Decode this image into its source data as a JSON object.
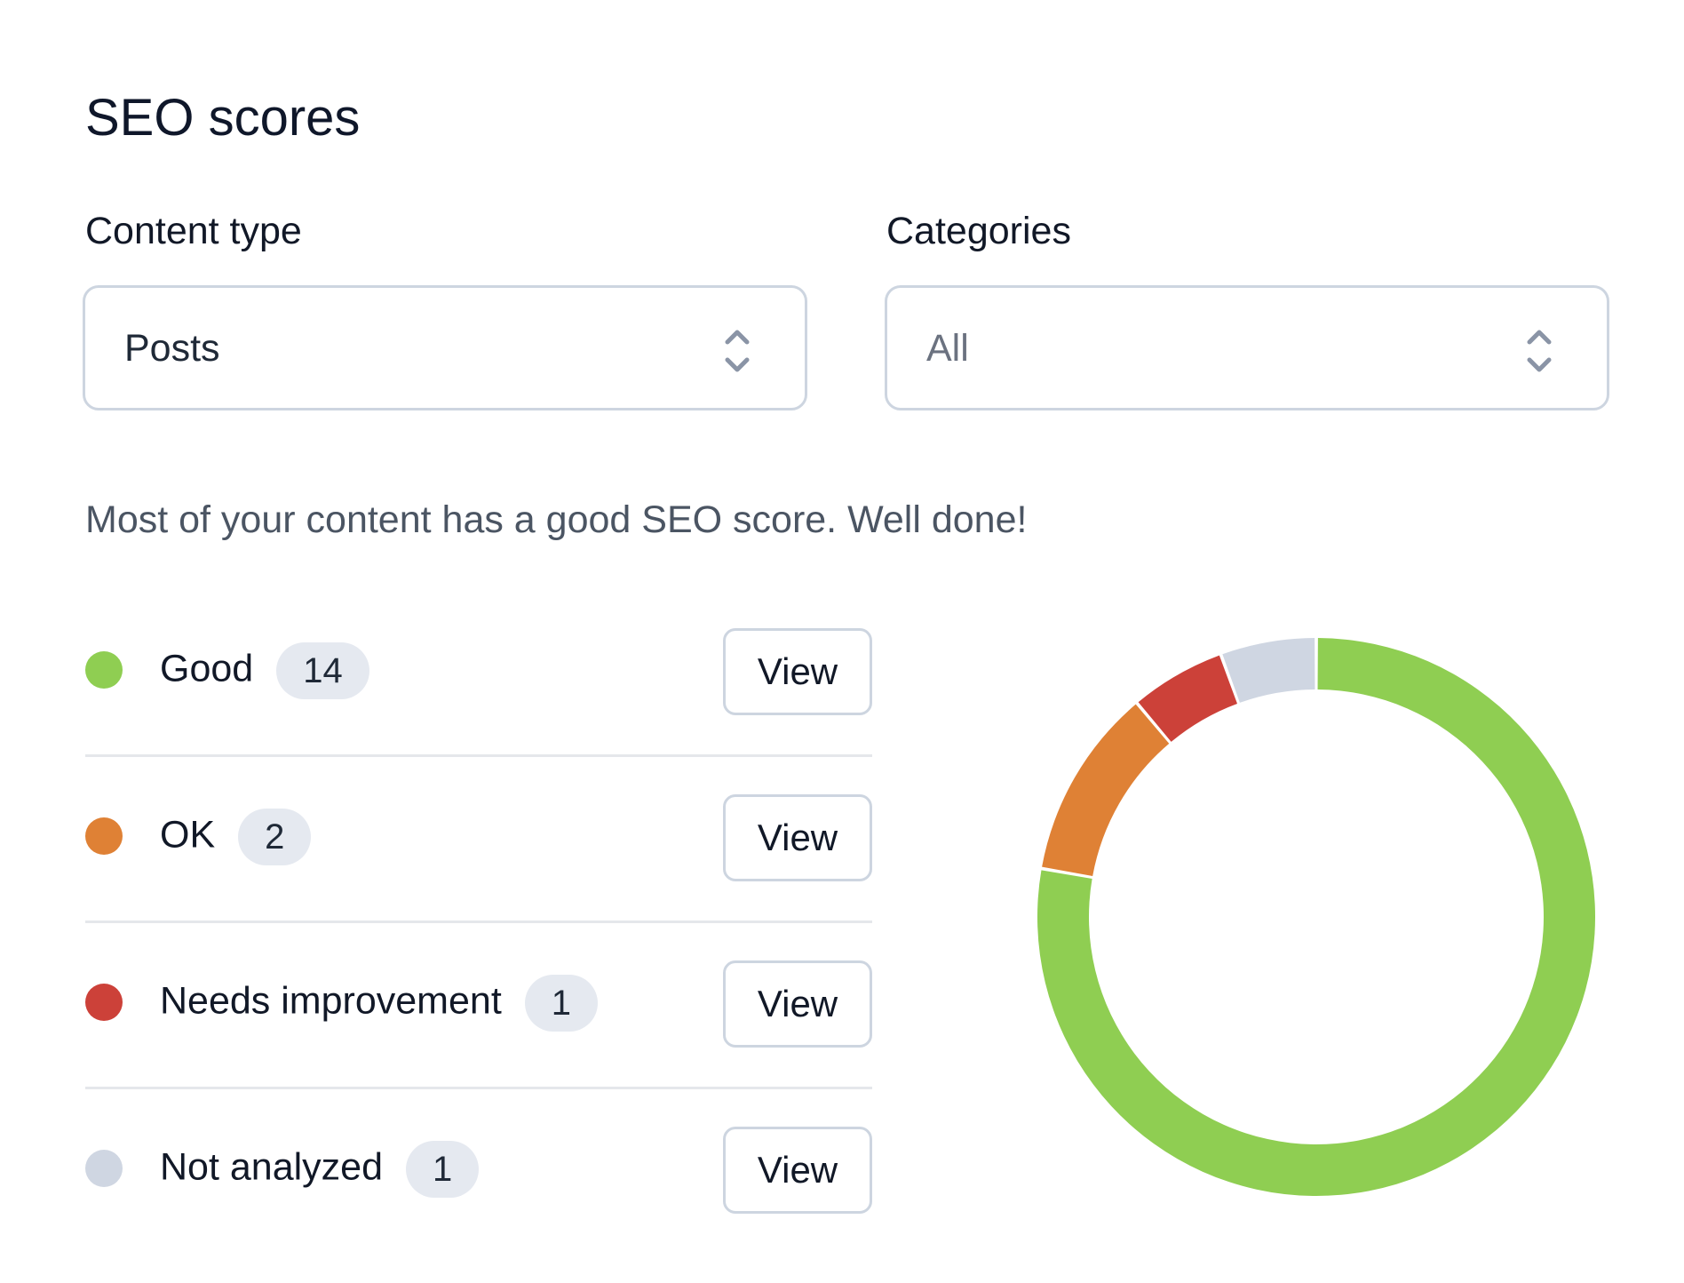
{
  "header": {
    "title": "SEO scores"
  },
  "filters": {
    "content_type": {
      "label": "Content type",
      "selected": "Posts"
    },
    "categories": {
      "label": "Categories",
      "selected": "All"
    }
  },
  "summary": "Most of your content has a good SEO score. Well done!",
  "scores": [
    {
      "label": "Good",
      "count": "14",
      "color": "#8fce52",
      "button": "View"
    },
    {
      "label": "OK",
      "count": "2",
      "color": "#df8135",
      "button": "View"
    },
    {
      "label": "Needs improvement",
      "count": "1",
      "color": "#cc4139",
      "button": "View"
    },
    {
      "label": "Not analyzed",
      "count": "1",
      "color": "#cfd6e2",
      "button": "View"
    }
  ],
  "chart_data": {
    "type": "pie",
    "variant": "donut",
    "categories": [
      "Good",
      "OK",
      "Needs improvement",
      "Not analyzed"
    ],
    "values": [
      14,
      2,
      1,
      1
    ],
    "colors": [
      "#8fce52",
      "#df8135",
      "#cc4139",
      "#cfd6e2"
    ],
    "title": "",
    "legend": "left"
  }
}
